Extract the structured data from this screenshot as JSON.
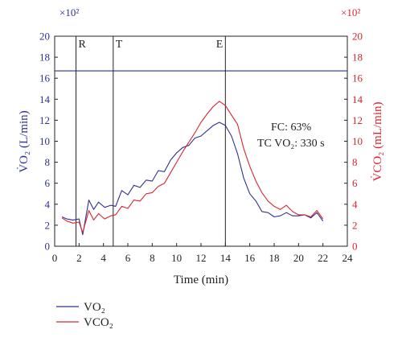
{
  "chart_data": {
    "type": "line",
    "xlabel": "Time (min)",
    "ylabel_left": "V̇O₂ (L/min)",
    "ylabel_right": "V̇CO₂ (mL/min)",
    "y_multiplier_left": "×10²",
    "y_multiplier_right": "×10²",
    "xlim": [
      0,
      24
    ],
    "ylim": [
      0,
      20
    ],
    "xticks": [
      "0",
      "2",
      "4",
      "6",
      "8",
      "10",
      "12",
      "14",
      "16",
      "18",
      "20",
      "22",
      "24"
    ],
    "yticks": [
      "0",
      "2",
      "4",
      "6",
      "8",
      "10",
      "12",
      "14",
      "16",
      "18",
      "20"
    ],
    "grid": false,
    "legend_position": "bottom-left",
    "colors": {
      "vo2": "#2e3192",
      "vco2": "#d7262f",
      "frame": "#222222",
      "hline": "#2e3192"
    },
    "horizontal_line_y": 16.7,
    "markers": [
      {
        "label": "R",
        "x": 1.75
      },
      {
        "label": "T",
        "x": 4.8
      },
      {
        "label": "E",
        "x": 14.0
      }
    ],
    "annotations": [
      "FC: 63%",
      "TC VO₂: 330 s"
    ],
    "series": [
      {
        "name": "VO₂",
        "color": "#2e3192",
        "x": [
          0.6,
          1.0,
          1.5,
          2.0,
          2.3,
          2.8,
          3.2,
          3.6,
          4.1,
          4.6,
          5.0,
          5.5,
          6.0,
          6.5,
          7.0,
          7.5,
          8.0,
          8.5,
          9.0,
          9.5,
          10.0,
          10.5,
          11.0,
          11.5,
          12.0,
          12.5,
          13.0,
          13.5,
          14.0,
          14.5,
          15.0,
          15.5,
          16.0,
          16.5,
          17.0,
          17.5,
          18.0,
          18.5,
          19.0,
          19.5,
          20.0,
          20.5,
          21.0,
          21.5,
          22.0
        ],
        "values": [
          2.8,
          2.6,
          2.5,
          2.6,
          1.1,
          4.4,
          3.5,
          4.2,
          3.7,
          3.9,
          3.8,
          5.3,
          4.9,
          5.8,
          5.6,
          6.3,
          6.2,
          7.2,
          7.1,
          8.2,
          8.9,
          9.4,
          9.6,
          10.3,
          10.5,
          11.0,
          11.5,
          11.8,
          11.5,
          10.5,
          8.8,
          6.5,
          5.0,
          4.3,
          3.3,
          3.2,
          2.8,
          2.9,
          3.2,
          2.9,
          2.9,
          3.0,
          2.7,
          3.2,
          2.4
        ]
      },
      {
        "name": "VCO₂",
        "color": "#d7262f",
        "x": [
          0.6,
          1.0,
          1.5,
          2.0,
          2.3,
          2.8,
          3.2,
          3.6,
          4.1,
          4.6,
          5.0,
          5.5,
          6.0,
          6.5,
          7.0,
          7.5,
          8.0,
          8.5,
          9.0,
          9.5,
          10.0,
          10.5,
          11.0,
          11.5,
          12.0,
          12.5,
          13.0,
          13.5,
          14.0,
          14.5,
          15.0,
          15.5,
          16.0,
          16.5,
          17.0,
          17.5,
          18.0,
          18.5,
          19.0,
          19.5,
          20.0,
          20.5,
          21.0,
          21.5,
          22.0
        ],
        "values": [
          2.7,
          2.4,
          2.2,
          2.3,
          1.3,
          3.4,
          2.5,
          3.1,
          2.6,
          2.9,
          3.0,
          3.8,
          3.6,
          4.4,
          4.3,
          5.0,
          5.1,
          5.7,
          6.0,
          7.0,
          8.0,
          9.0,
          9.9,
          10.8,
          11.8,
          12.6,
          13.3,
          13.8,
          13.4,
          12.5,
          11.6,
          9.3,
          7.6,
          6.2,
          5.1,
          4.3,
          3.8,
          3.5,
          3.9,
          3.3,
          3.0,
          3.0,
          2.8,
          3.4,
          2.6
        ]
      }
    ]
  }
}
